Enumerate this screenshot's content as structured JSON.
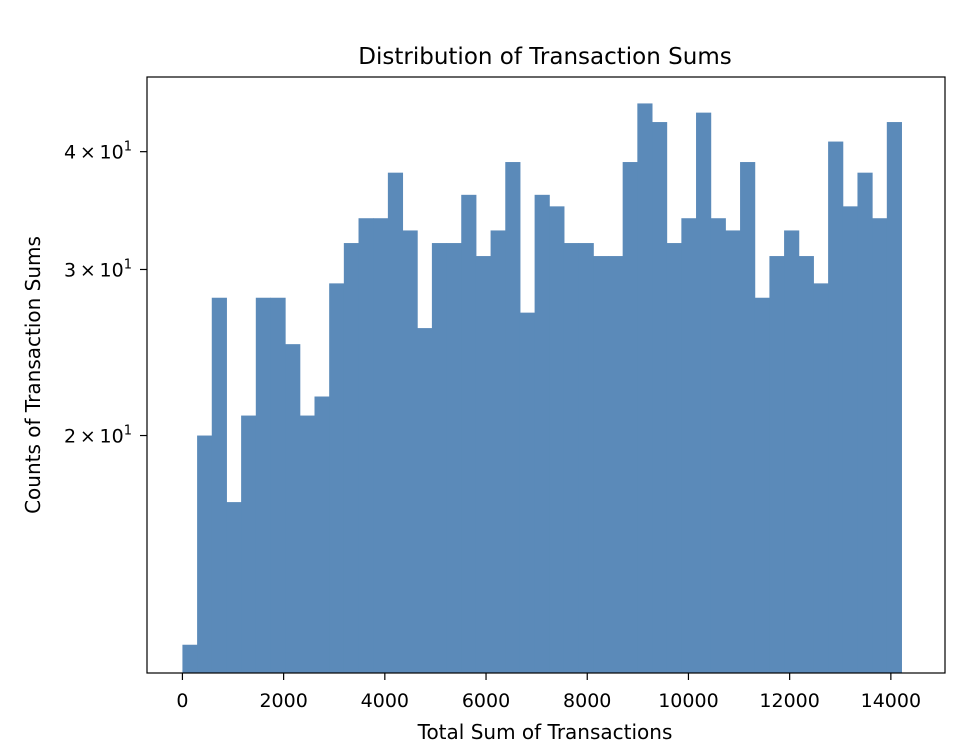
{
  "chart_data": {
    "type": "bar",
    "title": "Distribution of Transaction Sums",
    "xlabel": "Total Sum of Transactions",
    "ylabel": "Counts of Transaction Sums",
    "yscale": "log",
    "xlim": [
      -700,
      15070
    ],
    "ylim": [
      11.2,
      48
    ],
    "grid": false,
    "legend": "none",
    "bar_color": "#5b8ab9",
    "x_ticks": [
      0,
      2000,
      4000,
      6000,
      8000,
      10000,
      12000,
      14000
    ],
    "x_tick_labels": [
      "0",
      "2000",
      "4000",
      "6000",
      "8000",
      "10000",
      "12000",
      "14000"
    ],
    "y_ticks": [
      {
        "value": 20,
        "mantissa": "2",
        "base": "10",
        "exp": "1"
      },
      {
        "value": 30,
        "mantissa": "3",
        "base": "10",
        "exp": "1"
      },
      {
        "value": 40,
        "mantissa": "4",
        "base": "10",
        "exp": "1"
      }
    ],
    "bin_start": 0,
    "bin_width": 290,
    "values": [
      12,
      20,
      28,
      17,
      21,
      28,
      28,
      25,
      21,
      22,
      29,
      32,
      34,
      34,
      38,
      33,
      26,
      32,
      32,
      36,
      31,
      33,
      39,
      27,
      36,
      35,
      32,
      32,
      31,
      31,
      39,
      45,
      43,
      32,
      34,
      44,
      34,
      33,
      39,
      28,
      31,
      33,
      31,
      29,
      41,
      35,
      38,
      34,
      43
    ]
  }
}
